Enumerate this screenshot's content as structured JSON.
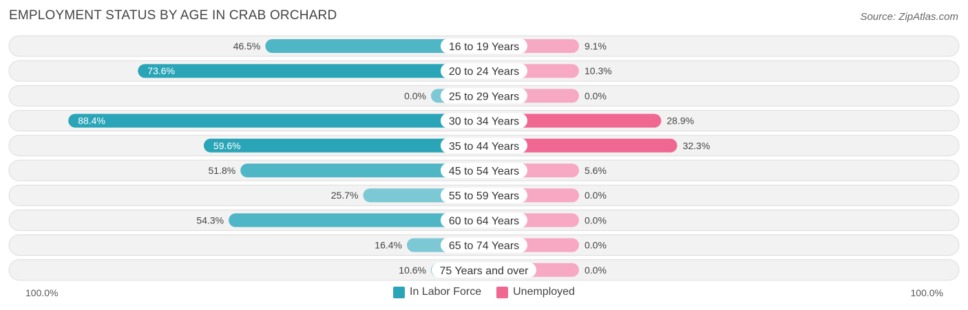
{
  "chart_data": {
    "type": "bar",
    "orientation": "horizontal-diverging",
    "title": "EMPLOYMENT STATUS BY AGE IN CRAB ORCHARD",
    "source": "Source: ZipAtlas.com",
    "categories": [
      "16 to 19 Years",
      "20 to 24 Years",
      "25 to 29 Years",
      "30 to 34 Years",
      "35 to 44 Years",
      "45 to 54 Years",
      "55 to 59 Years",
      "60 to 64 Years",
      "65 to 74 Years",
      "75 Years and over"
    ],
    "series": [
      {
        "name": "In Labor Force",
        "color": "#2aa5b8",
        "values": [
          46.5,
          73.6,
          0.0,
          88.4,
          59.6,
          51.8,
          25.7,
          54.3,
          16.4,
          10.6
        ],
        "labels": [
          "46.5%",
          "73.6%",
          "0.0%",
          "88.4%",
          "59.6%",
          "51.8%",
          "25.7%",
          "54.3%",
          "16.4%",
          "10.6%"
        ]
      },
      {
        "name": "Unemployed",
        "color": "#f06892",
        "values": [
          9.1,
          10.3,
          0.0,
          28.9,
          32.3,
          5.6,
          0.0,
          0.0,
          0.0,
          0.0
        ],
        "labels": [
          "9.1%",
          "10.3%",
          "0.0%",
          "28.9%",
          "32.3%",
          "5.6%",
          "0.0%",
          "0.0%",
          "0.0%",
          "0.0%"
        ]
      }
    ],
    "axis_min_label": "100.0%",
    "axis_max_label": "100.0%",
    "xlim": [
      -100,
      100
    ],
    "legend_position": "bottom-center"
  }
}
